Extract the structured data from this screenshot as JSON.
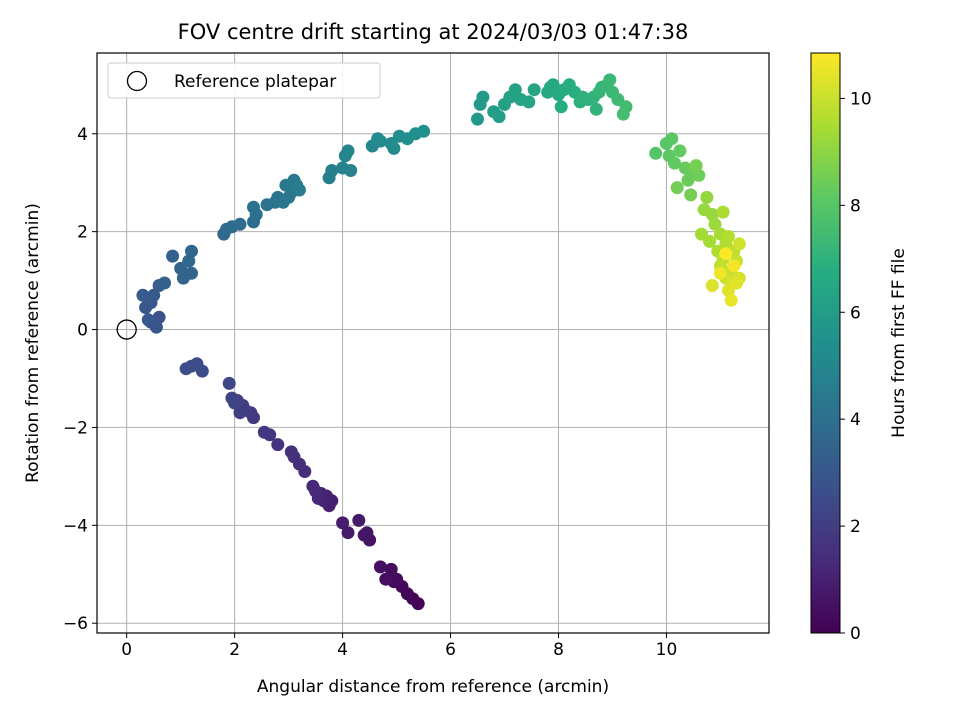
{
  "chart_data": {
    "type": "scatter",
    "title": "FOV centre drift starting at 2024/03/03 01:47:38",
    "xlabel": "Angular distance from reference (arcmin)",
    "ylabel": "Rotation from reference (arcmin)",
    "xlim": [
      -0.55,
      11.9
    ],
    "ylim": [
      -6.2,
      5.65
    ],
    "xticks": [
      0,
      2,
      4,
      6,
      8,
      10
    ],
    "yticks": [
      -6,
      -4,
      -2,
      0,
      2,
      4
    ],
    "grid": true,
    "legend": {
      "position": "top-left",
      "entries": [
        "Reference platepar"
      ]
    },
    "reference_point": {
      "x": 0,
      "y": 0,
      "marker": "hollow-circle"
    },
    "colorbar": {
      "label": "Hours from first FF file",
      "min": 0,
      "max": 10.85,
      "ticks": [
        0,
        2,
        4,
        6,
        8,
        10
      ],
      "colormap": "viridis"
    },
    "points": [
      [
        5.4,
        -5.6,
        0.05
      ],
      [
        5.3,
        -5.5,
        0.1
      ],
      [
        5.2,
        -5.4,
        0.15
      ],
      [
        5.1,
        -5.25,
        0.2
      ],
      [
        5.0,
        -5.1,
        0.25
      ],
      [
        4.95,
        -5.15,
        0.3
      ],
      [
        4.9,
        -4.9,
        0.35
      ],
      [
        4.8,
        -5.1,
        0.4
      ],
      [
        4.7,
        -4.85,
        0.45
      ],
      [
        4.5,
        -4.3,
        0.6
      ],
      [
        4.45,
        -4.15,
        0.65
      ],
      [
        4.4,
        -4.2,
        0.7
      ],
      [
        4.3,
        -3.9,
        0.75
      ],
      [
        4.1,
        -4.15,
        0.8
      ],
      [
        4.0,
        -3.95,
        0.85
      ],
      [
        3.8,
        -3.5,
        0.95
      ],
      [
        3.75,
        -3.6,
        1.0
      ],
      [
        3.7,
        -3.4,
        1.05
      ],
      [
        3.65,
        -3.5,
        1.1
      ],
      [
        3.6,
        -3.35,
        1.15
      ],
      [
        3.55,
        -3.45,
        1.2
      ],
      [
        3.5,
        -3.3,
        1.25
      ],
      [
        3.45,
        -3.2,
        1.3
      ],
      [
        3.3,
        -2.9,
        1.4
      ],
      [
        3.2,
        -2.75,
        1.45
      ],
      [
        3.1,
        -2.6,
        1.5
      ],
      [
        3.05,
        -2.5,
        1.55
      ],
      [
        2.8,
        -2.35,
        1.6
      ],
      [
        2.65,
        -2.15,
        1.7
      ],
      [
        2.55,
        -2.1,
        1.75
      ],
      [
        2.35,
        -1.8,
        1.85
      ],
      [
        2.3,
        -1.7,
        1.9
      ],
      [
        2.2,
        -1.65,
        1.95
      ],
      [
        2.15,
        -1.55,
        2.0
      ],
      [
        2.1,
        -1.7,
        2.05
      ],
      [
        2.05,
        -1.45,
        2.1
      ],
      [
        2.0,
        -1.5,
        2.15
      ],
      [
        1.95,
        -1.4,
        2.2
      ],
      [
        1.9,
        -1.1,
        2.3
      ],
      [
        1.4,
        -0.85,
        2.45
      ],
      [
        1.3,
        -0.7,
        2.5
      ],
      [
        1.2,
        -0.75,
        2.55
      ],
      [
        1.1,
        -0.8,
        2.6
      ],
      [
        0.6,
        0.25,
        2.8
      ],
      [
        0.55,
        0.05,
        2.85
      ],
      [
        0.45,
        0.15,
        2.9
      ],
      [
        0.4,
        0.2,
        2.95
      ],
      [
        0.35,
        0.45,
        3.0
      ],
      [
        0.45,
        0.55,
        3.05
      ],
      [
        0.5,
        0.7,
        3.1
      ],
      [
        0.3,
        0.7,
        3.15
      ],
      [
        0.6,
        0.9,
        3.25
      ],
      [
        0.7,
        0.95,
        3.3
      ],
      [
        0.85,
        1.5,
        3.4
      ],
      [
        1.0,
        1.25,
        3.45
      ],
      [
        1.05,
        1.05,
        3.5
      ],
      [
        1.2,
        1.15,
        3.55
      ],
      [
        1.15,
        1.4,
        3.6
      ],
      [
        1.2,
        1.6,
        3.65
      ],
      [
        1.8,
        1.95,
        3.75
      ],
      [
        1.85,
        2.05,
        3.8
      ],
      [
        1.95,
        2.1,
        3.85
      ],
      [
        2.1,
        2.15,
        3.9
      ],
      [
        2.35,
        2.2,
        3.95
      ],
      [
        2.4,
        2.35,
        4.0
      ],
      [
        2.35,
        2.5,
        4.05
      ],
      [
        2.6,
        2.55,
        4.1
      ],
      [
        2.75,
        2.6,
        4.15
      ],
      [
        2.8,
        2.7,
        4.2
      ],
      [
        2.9,
        2.6,
        4.25
      ],
      [
        3.0,
        2.7,
        4.3
      ],
      [
        3.05,
        2.8,
        4.35
      ],
      [
        2.95,
        2.95,
        4.4
      ],
      [
        3.1,
        3.05,
        4.45
      ],
      [
        3.2,
        2.85,
        4.5
      ],
      [
        3.15,
        2.95,
        4.55
      ],
      [
        3.75,
        3.1,
        4.65
      ],
      [
        3.8,
        3.25,
        4.7
      ],
      [
        4.0,
        3.3,
        4.8
      ],
      [
        4.15,
        3.25,
        4.85
      ],
      [
        4.05,
        3.55,
        4.9
      ],
      [
        4.1,
        3.65,
        4.95
      ],
      [
        4.55,
        3.75,
        5.05
      ],
      [
        4.7,
        3.85,
        5.1
      ],
      [
        4.65,
        3.9,
        5.15
      ],
      [
        4.9,
        3.8,
        5.2
      ],
      [
        4.95,
        3.7,
        5.25
      ],
      [
        5.05,
        3.95,
        5.3
      ],
      [
        5.2,
        3.9,
        5.35
      ],
      [
        5.35,
        4.0,
        5.4
      ],
      [
        5.5,
        4.05,
        5.45
      ],
      [
        6.5,
        4.3,
        5.85
      ],
      [
        6.55,
        4.6,
        5.9
      ],
      [
        6.6,
        4.75,
        5.95
      ],
      [
        6.8,
        4.45,
        6.05
      ],
      [
        6.9,
        4.35,
        6.1
      ],
      [
        7.0,
        4.6,
        6.15
      ],
      [
        7.1,
        4.75,
        6.2
      ],
      [
        7.2,
        4.9,
        6.25
      ],
      [
        7.3,
        4.7,
        6.3
      ],
      [
        7.45,
        4.65,
        6.35
      ],
      [
        7.55,
        4.9,
        6.4
      ],
      [
        7.8,
        4.85,
        6.5
      ],
      [
        7.85,
        4.95,
        6.55
      ],
      [
        7.9,
        5.0,
        6.6
      ],
      [
        8.0,
        4.8,
        6.65
      ],
      [
        8.05,
        4.55,
        6.7
      ],
      [
        8.1,
        4.9,
        6.75
      ],
      [
        8.2,
        5.0,
        6.8
      ],
      [
        8.3,
        4.85,
        6.85
      ],
      [
        8.4,
        4.65,
        6.9
      ],
      [
        8.45,
        4.75,
        6.95
      ],
      [
        8.55,
        4.7,
        7.0
      ],
      [
        8.65,
        4.75,
        7.05
      ],
      [
        8.7,
        4.5,
        7.1
      ],
      [
        8.75,
        4.85,
        7.15
      ],
      [
        8.8,
        4.95,
        7.2
      ],
      [
        8.9,
        5.0,
        7.25
      ],
      [
        8.95,
        5.1,
        7.3
      ],
      [
        9.0,
        4.85,
        7.35
      ],
      [
        9.1,
        4.7,
        7.4
      ],
      [
        9.25,
        4.55,
        7.5
      ],
      [
        9.2,
        4.4,
        7.55
      ],
      [
        9.8,
        3.6,
        7.95
      ],
      [
        10.0,
        3.8,
        8.05
      ],
      [
        10.1,
        3.9,
        8.1
      ],
      [
        10.05,
        3.55,
        8.15
      ],
      [
        10.15,
        3.4,
        8.2
      ],
      [
        10.25,
        3.65,
        8.25
      ],
      [
        10.35,
        3.3,
        8.3
      ],
      [
        10.4,
        3.05,
        8.35
      ],
      [
        10.5,
        3.25,
        8.4
      ],
      [
        10.6,
        3.15,
        8.45
      ],
      [
        10.2,
        2.9,
        8.5
      ],
      [
        10.45,
        2.75,
        8.55
      ],
      [
        10.55,
        3.35,
        8.6
      ],
      [
        10.75,
        2.7,
        9.1
      ],
      [
        10.7,
        2.45,
        9.15
      ],
      [
        10.85,
        2.35,
        9.2
      ],
      [
        10.9,
        2.15,
        9.25
      ],
      [
        10.65,
        1.95,
        9.35
      ],
      [
        10.8,
        1.8,
        9.4
      ],
      [
        11.0,
        1.95,
        9.45
      ],
      [
        11.05,
        2.4,
        9.5
      ],
      [
        10.95,
        1.6,
        9.55
      ],
      [
        11.1,
        1.75,
        9.6
      ],
      [
        11.15,
        1.9,
        9.65
      ],
      [
        11.05,
        1.45,
        9.7
      ],
      [
        11.25,
        1.6,
        9.8
      ],
      [
        11.0,
        1.3,
        9.85
      ],
      [
        11.2,
        1.2,
        9.9
      ],
      [
        11.3,
        1.4,
        9.95
      ],
      [
        11.1,
        1.05,
        10.0
      ],
      [
        11.35,
        1.75,
        10.1
      ],
      [
        11.2,
        0.95,
        10.15
      ],
      [
        11.35,
        1.05,
        10.2
      ],
      [
        10.85,
        0.9,
        10.3
      ],
      [
        11.15,
        0.8,
        10.35
      ],
      [
        11.3,
        0.95,
        10.4
      ],
      [
        11.2,
        0.6,
        10.5
      ],
      [
        11.0,
        1.15,
        10.6
      ],
      [
        11.25,
        1.3,
        10.7
      ],
      [
        11.1,
        1.55,
        10.8
      ]
    ]
  }
}
